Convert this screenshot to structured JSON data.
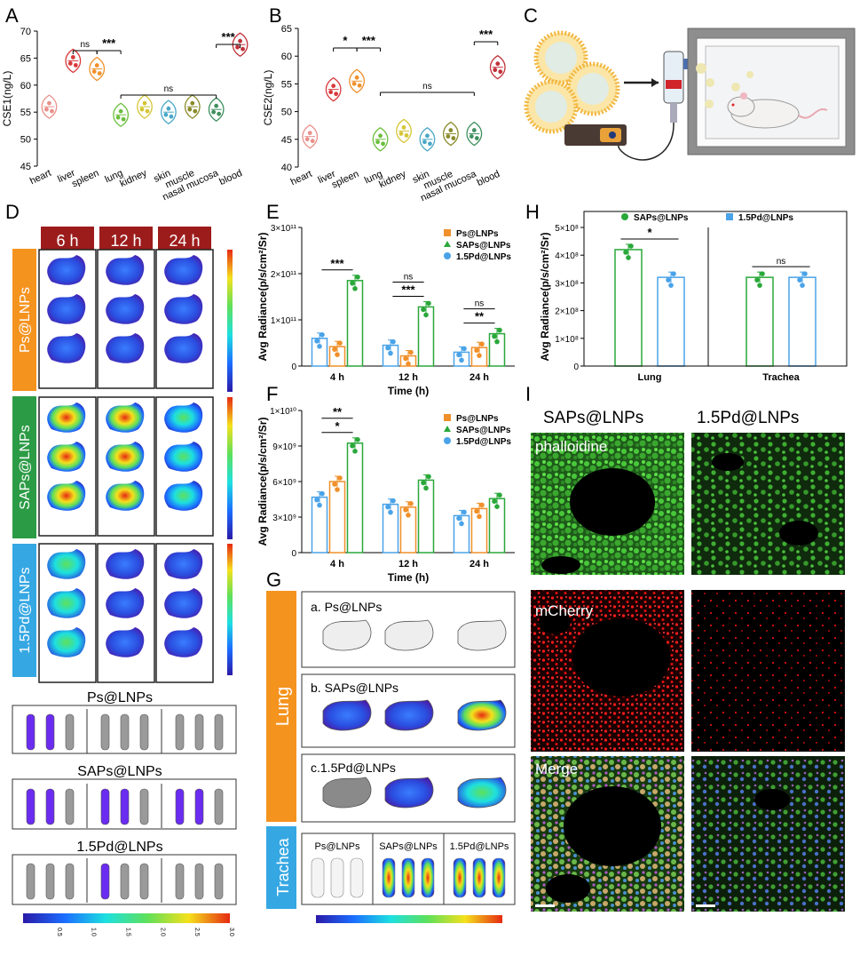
{
  "panel_labels": [
    "A",
    "B",
    "C",
    "D",
    "E",
    "F",
    "G",
    "H",
    "I"
  ],
  "colors": {
    "ps": "#f0902a",
    "saps": "#2aa83a",
    "pd": "#4aa3e8",
    "dark_red": "#9c1c1c",
    "orange_band": "#f5931f",
    "green_band": "#2c9b45",
    "blue_band": "#35a7e3"
  },
  "chart_data": [
    {
      "id": "A",
      "type": "violin",
      "ylabel": "CSE1(ng/L)",
      "ylim": [
        45,
        70
      ],
      "yticks": [
        45,
        50,
        55,
        60,
        65,
        70
      ],
      "categories": [
        "heart",
        "liver",
        "spleen",
        "lung",
        "kidney",
        "skin",
        "muscle",
        "nasal mucosa",
        "blood"
      ],
      "values": [
        56,
        64.5,
        63,
        54.5,
        56,
        55,
        56,
        55.5,
        67.5
      ],
      "colors": [
        "#e8908a",
        "#d9383a",
        "#f0902a",
        "#6bbf3c",
        "#d4c635",
        "#4aa7c7",
        "#8a8a2a",
        "#3f8f5e",
        "#c0303a"
      ],
      "significance": [
        {
          "pair": [
            1,
            2
          ],
          "label": "ns"
        },
        {
          "pair": [
            2,
            3
          ],
          "label": "***"
        },
        {
          "pair": [
            3,
            7
          ],
          "label": "ns"
        },
        {
          "pair": [
            7,
            8
          ],
          "label": "***"
        }
      ]
    },
    {
      "id": "B",
      "type": "violin",
      "ylabel": "CSE2(ng/L)",
      "ylim": [
        40,
        65
      ],
      "yticks": [
        40,
        45,
        50,
        55,
        60,
        65
      ],
      "categories": [
        "heart",
        "liver",
        "spleen",
        "lung",
        "kidney",
        "skin",
        "muscle",
        "nasal mucosa",
        "blood"
      ],
      "values": [
        45.5,
        54,
        55.5,
        45,
        46.5,
        45,
        46,
        46,
        58
      ],
      "colors": [
        "#e8908a",
        "#d9383a",
        "#f0902a",
        "#6bbf3c",
        "#d4c635",
        "#4aa7c7",
        "#8a8a2a",
        "#3f8f5e",
        "#c0303a"
      ],
      "significance": [
        {
          "pair": [
            1,
            2
          ],
          "label": "*"
        },
        {
          "pair": [
            2,
            3
          ],
          "label": "***"
        },
        {
          "pair": [
            3,
            7
          ],
          "label": "ns"
        },
        {
          "pair": [
            7,
            8
          ],
          "label": "***"
        }
      ]
    },
    {
      "id": "E",
      "type": "bar",
      "ylabel": "Avg Radiance(p/s/cm²/Sr)",
      "xlabel": "Time (h)",
      "ytick_labels": [
        "0",
        "1×10¹¹",
        "2×10¹¹",
        "3×10¹¹"
      ],
      "ylim": [
        0,
        3
      ],
      "categories": [
        "4 h",
        "12 h",
        "24 h"
      ],
      "series": [
        {
          "name": "1.5Pd@LNPs",
          "values": [
            0.6,
            0.45,
            0.3
          ]
        },
        {
          "name": "Ps@LNPs",
          "values": [
            0.42,
            0.22,
            0.4
          ]
        },
        {
          "name": "SAPs@LNPs",
          "values": [
            1.85,
            1.28,
            0.7
          ]
        }
      ],
      "legend_order": [
        "Ps@LNPs",
        "SAPs@LNPs",
        "1.5Pd@LNPs"
      ],
      "significance": [
        {
          "group": 0,
          "label": "***"
        },
        {
          "group": 1,
          "label": "***"
        },
        {
          "group": 1,
          "label": "ns"
        },
        {
          "group": 2,
          "label": "**"
        },
        {
          "group": 2,
          "label": "ns"
        }
      ]
    },
    {
      "id": "F",
      "type": "bar",
      "ylabel": "Avg Radiance(p/s/cm²/Sr)",
      "xlabel": "Time (h)",
      "ytick_labels": [
        "0",
        "3×10⁹",
        "6×10⁹",
        "9×10⁹",
        "1×10¹⁰"
      ],
      "ylim": [
        0,
        10
      ],
      "categories": [
        "4 h",
        "12 h",
        "24 h"
      ],
      "series": [
        {
          "name": "1.5Pd@LNPs",
          "values": [
            3.9,
            3.4,
            2.6
          ]
        },
        {
          "name": "Ps@LNPs",
          "values": [
            5.0,
            3.2,
            3.1
          ]
        },
        {
          "name": "SAPs@LNPs",
          "values": [
            7.7,
            5.1,
            3.8
          ]
        }
      ],
      "legend_order": [
        "Ps@LNPs",
        "SAPs@LNPs",
        "1.5Pd@LNPs"
      ],
      "significance": [
        {
          "group": 0,
          "label": "*"
        },
        {
          "group": 0,
          "label": "**"
        }
      ]
    },
    {
      "id": "H",
      "type": "bar",
      "ylabel": "Avg Radiance(p/s/cm²/Sr)",
      "ytick_labels": [
        "0",
        "1×10⁸",
        "2×10⁸",
        "3×10⁸",
        "4×10⁸",
        "5×10⁸"
      ],
      "ylim": [
        0,
        5
      ],
      "categories": [
        "Lung",
        "Trachea"
      ],
      "series": [
        {
          "name": "SAPs@LNPs",
          "values": [
            4.2,
            3.2
          ]
        },
        {
          "name": "1.5Pd@LNPs",
          "values": [
            3.2,
            3.2
          ]
        }
      ],
      "significance": [
        {
          "group": 0,
          "label": "*"
        },
        {
          "group": 1,
          "label": "ns"
        }
      ]
    }
  ],
  "panel_d": {
    "times": [
      "6 h",
      "12 h",
      "24 h"
    ],
    "groups": [
      "Ps@LNPs",
      "SAPs@LNPs",
      "1.5Pd@LNPs"
    ],
    "strip_titles": [
      "Ps@LNPs",
      "SAPs@LNPs",
      "1.5Pd@LNPs"
    ],
    "colorbar_ticks": [
      "0.5",
      "1.0",
      "1.5",
      "2.0",
      "2.5",
      "3.0"
    ],
    "colorbar_unit": "x10"
  },
  "panel_g": {
    "side_labels": [
      "Lung",
      "Trachea"
    ],
    "lung_rows": [
      "a. Ps@LNPs",
      "b. SAPs@LNPs",
      "c.1.5Pd@LNPs"
    ],
    "trachea_cols": [
      "Ps@LNPs",
      "SAPs@LNPs",
      "1.5Pd@LNPs"
    ]
  },
  "panel_i": {
    "cols": [
      "SAPs@LNPs",
      "1.5Pd@LNPs"
    ],
    "rows": [
      "phalloidine",
      "mCherry",
      "Merge"
    ]
  }
}
